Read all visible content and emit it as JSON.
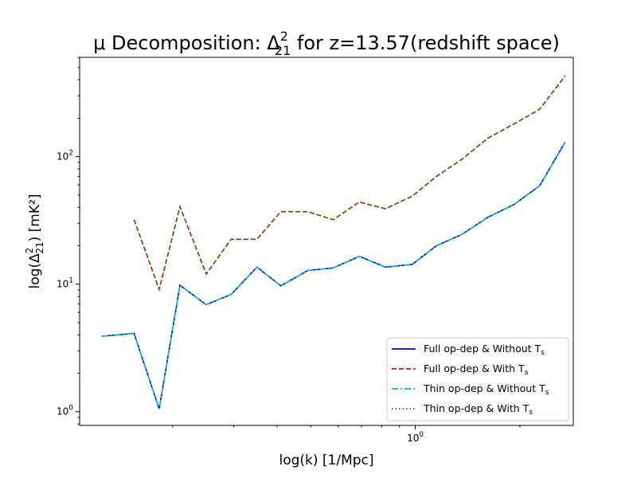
{
  "chart_data": {
    "type": "line",
    "title_prefix": "μ Decomposition: Δ",
    "title_sup": "2",
    "title_sub": "21",
    "title_suffix": " for z=13.57(redshift space)",
    "xlabel": "log(k) [1/Mpc]",
    "ylabel_prefix": "log(Δ",
    "ylabel_sup": "2",
    "ylabel_sub": "21",
    "ylabel_suffix": ") [mK²]",
    "xscale": "log",
    "yscale": "log",
    "xlim": [
      0.108,
      2.85
    ],
    "ylim": [
      0.78,
      600
    ],
    "x_ticks": [
      {
        "value": 1,
        "base": "10",
        "exp": "0"
      }
    ],
    "y_ticks": [
      {
        "value": 1,
        "base": "10",
        "exp": "0"
      },
      {
        "value": 10,
        "base": "10",
        "exp": "1"
      },
      {
        "value": 100,
        "base": "10",
        "exp": "2"
      }
    ],
    "grid": false,
    "legend_position": "lower-right",
    "x": [
      0.125,
      0.155,
      0.183,
      0.21,
      0.25,
      0.295,
      0.35,
      0.41,
      0.49,
      0.58,
      0.69,
      0.82,
      0.98,
      1.15,
      1.36,
      1.62,
      1.92,
      2.28,
      2.7
    ],
    "series": [
      {
        "name": "Full op-dep & Without T",
        "name_sub": "s",
        "color": "#0000ee",
        "dash": "solid",
        "values": [
          3.9,
          4.1,
          1.05,
          9.8,
          6.9,
          8.3,
          13.6,
          9.7,
          12.8,
          13.4,
          16.5,
          13.6,
          14.3,
          20.0,
          24.5,
          33.5,
          42.0,
          59.0,
          130.0
        ]
      },
      {
        "name": "Full op-dep & With T",
        "name_sub": "s",
        "color": "#dd1100",
        "dash": "dashed",
        "values": [
          null,
          32.0,
          9.1,
          40.5,
          12.0,
          22.5,
          22.5,
          37.0,
          37.0,
          32.0,
          44.0,
          39.0,
          49.0,
          70.0,
          95.0,
          140.0,
          180.0,
          235.0,
          430.0
        ]
      },
      {
        "name": "Thin op-dep & Without T",
        "name_sub": "s",
        "color": "#00bfbf",
        "dash": "dashdot",
        "values": [
          3.9,
          4.1,
          1.05,
          9.8,
          6.9,
          8.3,
          13.6,
          9.7,
          12.8,
          13.4,
          16.5,
          13.6,
          14.3,
          20.0,
          24.5,
          33.5,
          42.0,
          59.0,
          130.0
        ]
      },
      {
        "name": "Thin op-dep & With T",
        "name_sub": "s",
        "color": "#007f00",
        "dash": "dotted",
        "values": [
          null,
          32.0,
          9.1,
          40.5,
          12.0,
          22.5,
          22.5,
          37.0,
          37.0,
          32.0,
          44.0,
          39.0,
          49.0,
          70.0,
          95.0,
          140.0,
          180.0,
          235.0,
          430.0
        ]
      }
    ]
  }
}
